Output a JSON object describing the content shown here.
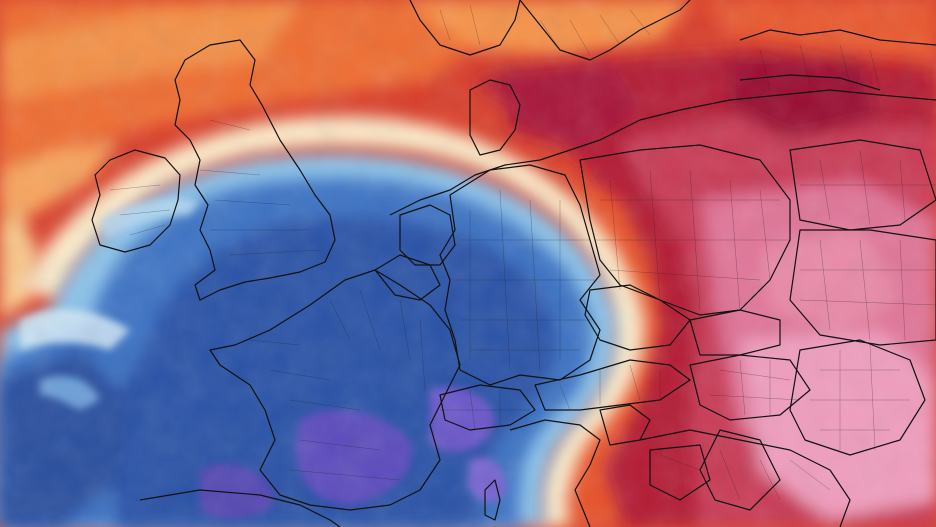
{
  "map": {
    "type": "temperature-anomaly-map",
    "region": "Europe",
    "has_text_labels": false,
    "colors": {
      "deep_cold": "#1f3e8f",
      "cold": "#2f5fb8",
      "cool": "#5f9ad9",
      "light_cool": "#a9d3f0",
      "neutral_front": "#fff2d2",
      "warm": "#f48a35",
      "warm_strong": "#e24b2a",
      "hot": "#c6253d",
      "hot_strong": "#a31332",
      "hot_pink": "#e88aa8",
      "very_hot_pink": "#f0a6c4",
      "violet": "#6b52c4"
    }
  }
}
